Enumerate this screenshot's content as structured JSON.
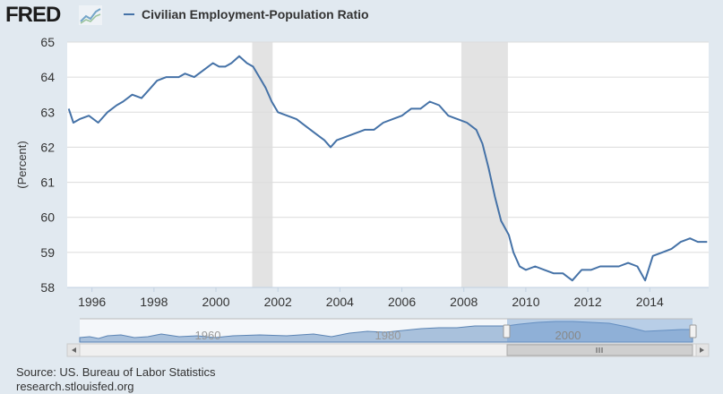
{
  "header": {
    "logo_text": "FRED",
    "logo_icon": "line-graph-icon"
  },
  "chart_data": {
    "type": "line",
    "title": "",
    "legend": "Civilian Employment-Population Ratio",
    "legend_placement": "top-left",
    "xlabel": "",
    "ylabel": "(Percent)",
    "xlim": [
      1995.2,
      2015.9
    ],
    "ylim": [
      58,
      65
    ],
    "yticks": [
      58,
      59,
      60,
      61,
      62,
      63,
      64,
      65
    ],
    "xticks": [
      1996,
      1998,
      2000,
      2002,
      2004,
      2006,
      2008,
      2010,
      2012,
      2014
    ],
    "grid": "horizontal",
    "line_color": "#4572a7",
    "recessions": [
      [
        2001.17,
        2001.83
      ],
      [
        2007.92,
        2009.42
      ]
    ],
    "series": [
      {
        "name": "Civilian Employment-Population Ratio",
        "points": [
          [
            1995.25,
            63.1
          ],
          [
            1995.4,
            62.7
          ],
          [
            1995.6,
            62.8
          ],
          [
            1995.9,
            62.9
          ],
          [
            1996.2,
            62.7
          ],
          [
            1996.5,
            63.0
          ],
          [
            1996.8,
            63.2
          ],
          [
            1997.0,
            63.3
          ],
          [
            1997.3,
            63.5
          ],
          [
            1997.6,
            63.4
          ],
          [
            1997.9,
            63.7
          ],
          [
            1998.1,
            63.9
          ],
          [
            1998.4,
            64.0
          ],
          [
            1998.8,
            64.0
          ],
          [
            1999.0,
            64.1
          ],
          [
            1999.3,
            64.0
          ],
          [
            1999.6,
            64.2
          ],
          [
            1999.9,
            64.4
          ],
          [
            2000.1,
            64.3
          ],
          [
            2000.3,
            64.3
          ],
          [
            2000.5,
            64.4
          ],
          [
            2000.75,
            64.6
          ],
          [
            2001.0,
            64.4
          ],
          [
            2001.2,
            64.3
          ],
          [
            2001.4,
            64.0
          ],
          [
            2001.6,
            63.7
          ],
          [
            2001.8,
            63.3
          ],
          [
            2002.0,
            63.0
          ],
          [
            2002.3,
            62.9
          ],
          [
            2002.6,
            62.8
          ],
          [
            2002.9,
            62.6
          ],
          [
            2003.2,
            62.4
          ],
          [
            2003.5,
            62.2
          ],
          [
            2003.7,
            62.0
          ],
          [
            2003.9,
            62.2
          ],
          [
            2004.2,
            62.3
          ],
          [
            2004.5,
            62.4
          ],
          [
            2004.8,
            62.5
          ],
          [
            2005.1,
            62.5
          ],
          [
            2005.4,
            62.7
          ],
          [
            2005.7,
            62.8
          ],
          [
            2006.0,
            62.9
          ],
          [
            2006.3,
            63.1
          ],
          [
            2006.6,
            63.1
          ],
          [
            2006.9,
            63.3
          ],
          [
            2007.2,
            63.2
          ],
          [
            2007.5,
            62.9
          ],
          [
            2007.8,
            62.8
          ],
          [
            2008.1,
            62.7
          ],
          [
            2008.4,
            62.5
          ],
          [
            2008.6,
            62.1
          ],
          [
            2008.8,
            61.4
          ],
          [
            2009.0,
            60.6
          ],
          [
            2009.2,
            59.9
          ],
          [
            2009.45,
            59.5
          ],
          [
            2009.6,
            59.0
          ],
          [
            2009.8,
            58.6
          ],
          [
            2010.0,
            58.5
          ],
          [
            2010.3,
            58.6
          ],
          [
            2010.6,
            58.5
          ],
          [
            2010.9,
            58.4
          ],
          [
            2011.2,
            58.4
          ],
          [
            2011.5,
            58.2
          ],
          [
            2011.8,
            58.5
          ],
          [
            2012.1,
            58.5
          ],
          [
            2012.4,
            58.6
          ],
          [
            2012.7,
            58.6
          ],
          [
            2013.0,
            58.6
          ],
          [
            2013.3,
            58.7
          ],
          [
            2013.6,
            58.6
          ],
          [
            2013.85,
            58.2
          ],
          [
            2014.1,
            58.9
          ],
          [
            2014.4,
            59.0
          ],
          [
            2014.7,
            59.1
          ],
          [
            2015.0,
            59.3
          ],
          [
            2015.3,
            59.4
          ],
          [
            2015.55,
            59.3
          ],
          [
            2015.85,
            59.3
          ]
        ]
      }
    ],
    "navigator": {
      "labels": [
        "1960",
        "1980",
        "2000"
      ]
    }
  },
  "footer": {
    "source": "Source: US. Bureau of Labor Statistics",
    "site": "research.stlouisfed.org"
  }
}
